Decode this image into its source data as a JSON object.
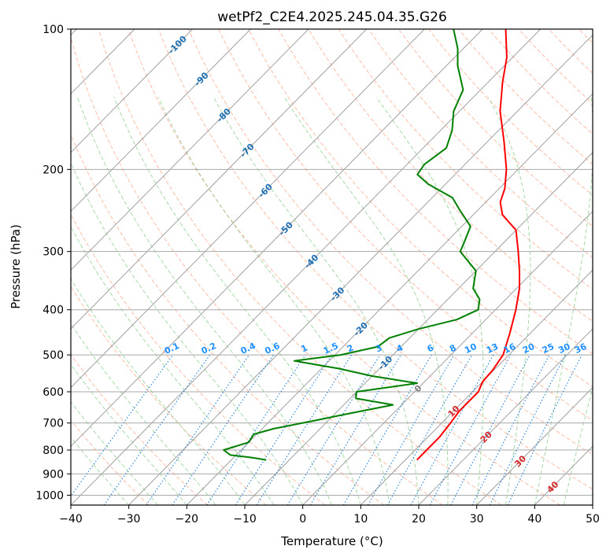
{
  "chart_data": {
    "type": "line",
    "subtype": "skew-t log-p diagram",
    "title": "wetPf2_C2E4.2025.245.04.35.G26",
    "xlabel": "Temperature (°C)",
    "ylabel": "Pressure (hPa)",
    "xlim": [
      -40,
      50
    ],
    "ylim": [
      1050,
      100
    ],
    "y_scale": "log",
    "x_ticks": [
      "−40",
      "−30",
      "−20",
      "−10",
      "0",
      "10",
      "20",
      "30",
      "40",
      "50"
    ],
    "y_ticks": [
      "100",
      "200",
      "300",
      "400",
      "500",
      "600",
      "700",
      "800",
      "900",
      "1000"
    ],
    "grid": true,
    "series": [
      {
        "key": "temperature",
        "color": "#ff0000",
        "points": [
          {
            "p": 840,
            "t": 12.0
          },
          {
            "p": 800,
            "t": 12.0
          },
          {
            "p": 750,
            "t": 12.0
          },
          {
            "p": 700,
            "t": 11.5
          },
          {
            "p": 660,
            "t": 11.0
          },
          {
            "p": 630,
            "t": 11.0
          },
          {
            "p": 600,
            "t": 11.0
          },
          {
            "p": 570,
            "t": 10.0
          },
          {
            "p": 540,
            "t": 9.8
          },
          {
            "p": 500,
            "t": 9.0
          },
          {
            "p": 450,
            "t": 6.5
          },
          {
            "p": 400,
            "t": 3.5
          },
          {
            "p": 360,
            "t": 0.5
          },
          {
            "p": 330,
            "t": -2.5
          },
          {
            "p": 300,
            "t": -6.0
          },
          {
            "p": 270,
            "t": -10.0
          },
          {
            "p": 250,
            "t": -15.0
          },
          {
            "p": 235,
            "t": -17.5
          },
          {
            "p": 220,
            "t": -19.0
          },
          {
            "p": 200,
            "t": -22.0
          },
          {
            "p": 175,
            "t": -27.0
          },
          {
            "p": 150,
            "t": -33.0
          },
          {
            "p": 130,
            "t": -37.5
          },
          {
            "p": 115,
            "t": -41.0
          },
          {
            "p": 100,
            "t": -46.0
          }
        ]
      },
      {
        "key": "dewpoint",
        "color": "#008000",
        "points": [
          {
            "p": 840,
            "t": -14.0
          },
          {
            "p": 830,
            "t": -17.0
          },
          {
            "p": 820,
            "t": -21.0
          },
          {
            "p": 800,
            "t": -23.0
          },
          {
            "p": 770,
            "t": -20.0
          },
          {
            "p": 740,
            "t": -20.5
          },
          {
            "p": 720,
            "t": -18.0
          },
          {
            "p": 690,
            "t": -12.0
          },
          {
            "p": 670,
            "t": -8.0
          },
          {
            "p": 640,
            "t": -1.5
          },
          {
            "p": 620,
            "t": -9.0
          },
          {
            "p": 600,
            "t": -10.0
          },
          {
            "p": 575,
            "t": -1.0
          },
          {
            "p": 555,
            "t": -10.0
          },
          {
            "p": 535,
            "t": -17.0
          },
          {
            "p": 515,
            "t": -26.0
          },
          {
            "p": 500,
            "t": -19.0
          },
          {
            "p": 480,
            "t": -14.0
          },
          {
            "p": 460,
            "t": -13.5
          },
          {
            "p": 440,
            "t": -10.0
          },
          {
            "p": 420,
            "t": -5.0
          },
          {
            "p": 400,
            "t": -3.0
          },
          {
            "p": 380,
            "t": -4.5
          },
          {
            "p": 360,
            "t": -7.5
          },
          {
            "p": 330,
            "t": -10.0
          },
          {
            "p": 300,
            "t": -16.0
          },
          {
            "p": 285,
            "t": -17.0
          },
          {
            "p": 265,
            "t": -18.5
          },
          {
            "p": 245,
            "t": -23.0
          },
          {
            "p": 230,
            "t": -26.5
          },
          {
            "p": 215,
            "t": -33.0
          },
          {
            "p": 205,
            "t": -36.5
          },
          {
            "p": 195,
            "t": -37.0
          },
          {
            "p": 180,
            "t": -36.0
          },
          {
            "p": 165,
            "t": -38.0
          },
          {
            "p": 150,
            "t": -41.0
          },
          {
            "p": 135,
            "t": -43.0
          },
          {
            "p": 120,
            "t": -48.0
          },
          {
            "p": 110,
            "t": -51.0
          },
          {
            "p": 100,
            "t": -55.0
          }
        ]
      }
    ],
    "isotherm_labels": [
      {
        "text": "-100",
        "t": -100,
        "p": 108
      },
      {
        "text": "-90",
        "t": -90,
        "p": 128
      },
      {
        "text": "-80",
        "t": -80,
        "p": 153
      },
      {
        "text": "-70",
        "t": -70,
        "p": 182
      },
      {
        "text": "-60",
        "t": -60,
        "p": 222
      },
      {
        "text": "-50",
        "t": -50,
        "p": 268
      },
      {
        "text": "-40",
        "t": -40,
        "p": 315
      },
      {
        "text": "-30",
        "t": -30,
        "p": 370
      },
      {
        "text": "-20",
        "t": -20,
        "p": 440
      },
      {
        "text": "-10",
        "t": -10,
        "p": 520
      },
      {
        "text": "0",
        "t": 0,
        "p": 590
      },
      {
        "text": "10",
        "t": 10,
        "p": 660
      },
      {
        "text": "20",
        "t": 20,
        "p": 750
      },
      {
        "text": "30",
        "t": 30,
        "p": 845
      },
      {
        "text": "40",
        "t": 40,
        "p": 960
      }
    ],
    "mixing_ratio_labels": [
      "0.1",
      "0.2",
      "0.4",
      "0.6",
      "1",
      "1.5",
      "2",
      "3",
      "4",
      "6",
      "8",
      "10",
      "13",
      "16",
      "20",
      "25",
      "30",
      "36"
    ],
    "mixing_ratio_values": [
      0.1,
      0.2,
      0.4,
      0.6,
      1,
      1.5,
      2,
      3,
      4,
      6,
      8,
      10,
      13,
      16,
      20,
      25,
      30,
      36
    ],
    "colors": {
      "isotherm": "#a0a0a0",
      "isobar": "#a8a8a8",
      "dry_adiabat": "#ff9f80",
      "moist_adiabat": "#90d090",
      "mixing_ratio": "#1e7fd8",
      "isotherm_label_cold": "#1f6fb4",
      "isotherm_label_zero": "#808080",
      "isotherm_label_warm": "#d62728",
      "mixing_label": "#1e90ff"
    }
  }
}
